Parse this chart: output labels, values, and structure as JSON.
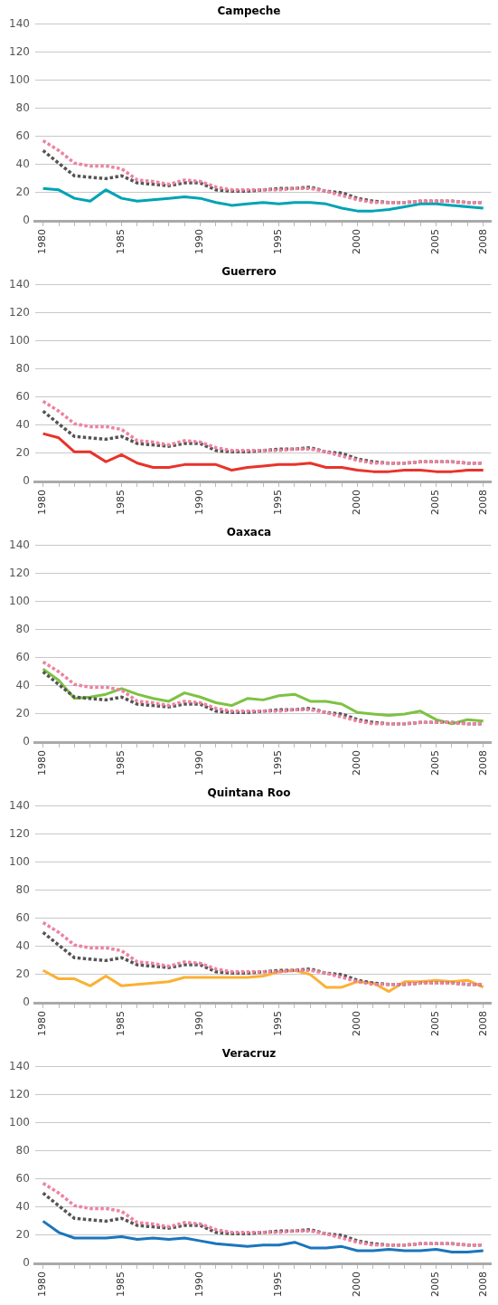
{
  "chart_data": [
    {
      "type": "line",
      "title": "Campeche",
      "categories": [
        "1980",
        null,
        null,
        null,
        null,
        "1985",
        null,
        null,
        null,
        null,
        "1990",
        null,
        null,
        null,
        null,
        "1995",
        null,
        null,
        null,
        null,
        "2000",
        null,
        null,
        null,
        null,
        "2005",
        null,
        null,
        "2008"
      ],
      "ylim": [
        0,
        140
      ],
      "yticks": [
        0,
        20,
        40,
        60,
        80,
        100,
        120,
        140
      ],
      "grid": "y",
      "legend": false,
      "series": [
        {
          "color": "#ee82a0",
          "line_style": "dotted",
          "values": [
            57,
            50,
            41,
            39,
            39,
            37,
            29,
            28,
            26,
            29,
            28,
            24,
            22,
            22,
            22,
            22,
            23,
            23,
            21,
            18,
            15,
            13,
            13,
            13,
            14,
            14,
            14,
            13,
            13
          ]
        },
        {
          "color": "#555555",
          "line_style": "dotted",
          "values": [
            50,
            41,
            32,
            31,
            30,
            32,
            27,
            26,
            25,
            27,
            27,
            22,
            21,
            21,
            22,
            23,
            23,
            24,
            21,
            20,
            16,
            14,
            13,
            13,
            14,
            14,
            14,
            13,
            13
          ]
        },
        {
          "color": "#00a3b4",
          "line_style": "solid",
          "values": [
            23,
            22,
            16,
            14,
            22,
            16,
            14,
            15,
            16,
            17,
            16,
            13,
            11,
            12,
            13,
            12,
            13,
            13,
            12,
            9,
            7,
            7,
            8,
            10,
            12,
            12,
            11,
            10,
            9
          ]
        }
      ]
    },
    {
      "type": "line",
      "title": "Guerrero",
      "categories": [
        "1980",
        null,
        null,
        null,
        null,
        "1985",
        null,
        null,
        null,
        null,
        "1990",
        null,
        null,
        null,
        null,
        "1995",
        null,
        null,
        null,
        null,
        "2000",
        null,
        null,
        null,
        null,
        "2005",
        null,
        null,
        "2008"
      ],
      "ylim": [
        0,
        140
      ],
      "yticks": [
        0,
        20,
        40,
        60,
        80,
        100,
        120,
        140
      ],
      "grid": "y",
      "legend": false,
      "series": [
        {
          "color": "#ee82a0",
          "line_style": "dotted",
          "values": [
            57,
            50,
            41,
            39,
            39,
            37,
            29,
            28,
            26,
            29,
            28,
            24,
            22,
            22,
            22,
            22,
            23,
            23,
            21,
            18,
            15,
            13,
            13,
            13,
            14,
            14,
            14,
            13,
            13
          ]
        },
        {
          "color": "#555555",
          "line_style": "dotted",
          "values": [
            50,
            41,
            32,
            31,
            30,
            32,
            27,
            26,
            25,
            27,
            27,
            22,
            21,
            21,
            22,
            23,
            23,
            24,
            21,
            20,
            16,
            14,
            13,
            13,
            14,
            14,
            14,
            13,
            13
          ]
        },
        {
          "color": "#e8332a",
          "line_style": "solid",
          "values": [
            34,
            31,
            21,
            21,
            14,
            19,
            13,
            10,
            10,
            12,
            12,
            12,
            8,
            10,
            11,
            12,
            12,
            13,
            10,
            10,
            8,
            7,
            7,
            8,
            8,
            7,
            7,
            8,
            8
          ]
        }
      ]
    },
    {
      "type": "line",
      "title": "Oaxaca",
      "categories": [
        "1980",
        null,
        null,
        null,
        null,
        "1985",
        null,
        null,
        null,
        null,
        "1990",
        null,
        null,
        null,
        null,
        "1995",
        null,
        null,
        null,
        null,
        "2000",
        null,
        null,
        null,
        null,
        "2005",
        null,
        null,
        "2008"
      ],
      "ylim": [
        0,
        140
      ],
      "yticks": [
        0,
        20,
        40,
        60,
        80,
        100,
        120,
        140
      ],
      "grid": "y",
      "legend": false,
      "series": [
        {
          "color": "#ee82a0",
          "line_style": "dotted",
          "values": [
            57,
            50,
            41,
            39,
            39,
            37,
            29,
            28,
            26,
            29,
            28,
            24,
            22,
            22,
            22,
            22,
            23,
            23,
            21,
            18,
            15,
            13,
            13,
            13,
            14,
            14,
            14,
            13,
            13
          ]
        },
        {
          "color": "#555555",
          "line_style": "dotted",
          "values": [
            50,
            41,
            32,
            31,
            30,
            32,
            27,
            26,
            25,
            27,
            27,
            22,
            21,
            21,
            22,
            23,
            23,
            24,
            21,
            20,
            16,
            14,
            13,
            13,
            14,
            14,
            14,
            13,
            13
          ]
        },
        {
          "color": "#7dc242",
          "line_style": "solid",
          "values": [
            52,
            44,
            31,
            32,
            34,
            38,
            34,
            31,
            29,
            35,
            32,
            28,
            26,
            31,
            30,
            33,
            34,
            29,
            29,
            27,
            21,
            20,
            19,
            20,
            22,
            16,
            13,
            16,
            15
          ]
        }
      ]
    },
    {
      "type": "line",
      "title": "Quintana Roo",
      "categories": [
        "1980",
        null,
        null,
        null,
        null,
        "1985",
        null,
        null,
        null,
        null,
        "1990",
        null,
        null,
        null,
        null,
        "1995",
        null,
        null,
        null,
        null,
        "2000",
        null,
        null,
        null,
        null,
        "2005",
        null,
        null,
        "2008"
      ],
      "ylim": [
        0,
        140
      ],
      "yticks": [
        0,
        20,
        40,
        60,
        80,
        100,
        120,
        140
      ],
      "grid": "y",
      "legend": false,
      "series": [
        {
          "color": "#ee82a0",
          "line_style": "dotted",
          "values": [
            57,
            50,
            41,
            39,
            39,
            37,
            29,
            28,
            26,
            29,
            28,
            24,
            22,
            22,
            22,
            22,
            23,
            23,
            21,
            18,
            15,
            13,
            13,
            13,
            14,
            14,
            14,
            13,
            13
          ]
        },
        {
          "color": "#555555",
          "line_style": "dotted",
          "values": [
            50,
            41,
            32,
            31,
            30,
            32,
            27,
            26,
            25,
            27,
            27,
            22,
            21,
            21,
            22,
            23,
            23,
            24,
            21,
            20,
            16,
            14,
            13,
            13,
            14,
            14,
            14,
            13,
            13
          ]
        },
        {
          "color": "#fbb034",
          "line_style": "solid",
          "values": [
            23,
            17,
            17,
            12,
            19,
            12,
            13,
            14,
            15,
            18,
            18,
            18,
            18,
            18,
            19,
            22,
            23,
            20,
            11,
            11,
            15,
            14,
            8,
            15,
            15,
            16,
            15,
            16,
            11
          ]
        }
      ]
    },
    {
      "type": "line",
      "title": "Veracruz",
      "categories": [
        "1980",
        null,
        null,
        null,
        null,
        "1985",
        null,
        null,
        null,
        null,
        "1990",
        null,
        null,
        null,
        null,
        "1995",
        null,
        null,
        null,
        null,
        "2000",
        null,
        null,
        null,
        null,
        "2005",
        null,
        null,
        "2008"
      ],
      "ylim": [
        0,
        140
      ],
      "yticks": [
        0,
        20,
        40,
        60,
        80,
        100,
        120,
        140
      ],
      "grid": "y",
      "legend": false,
      "series": [
        {
          "color": "#ee82a0",
          "line_style": "dotted",
          "values": [
            57,
            50,
            41,
            39,
            39,
            37,
            29,
            28,
            26,
            29,
            28,
            24,
            22,
            22,
            22,
            22,
            23,
            23,
            21,
            18,
            15,
            13,
            13,
            13,
            14,
            14,
            14,
            13,
            13
          ]
        },
        {
          "color": "#555555",
          "line_style": "dotted",
          "values": [
            50,
            41,
            32,
            31,
            30,
            32,
            27,
            26,
            25,
            27,
            27,
            22,
            21,
            21,
            22,
            23,
            23,
            24,
            21,
            20,
            16,
            14,
            13,
            13,
            14,
            14,
            14,
            13,
            13
          ]
        },
        {
          "color": "#1b75bc",
          "line_style": "solid",
          "values": [
            30,
            22,
            18,
            18,
            18,
            19,
            17,
            18,
            17,
            18,
            16,
            14,
            13,
            12,
            13,
            13,
            15,
            11,
            11,
            12,
            9,
            9,
            10,
            9,
            9,
            10,
            8,
            8,
            9
          ]
        }
      ]
    }
  ]
}
